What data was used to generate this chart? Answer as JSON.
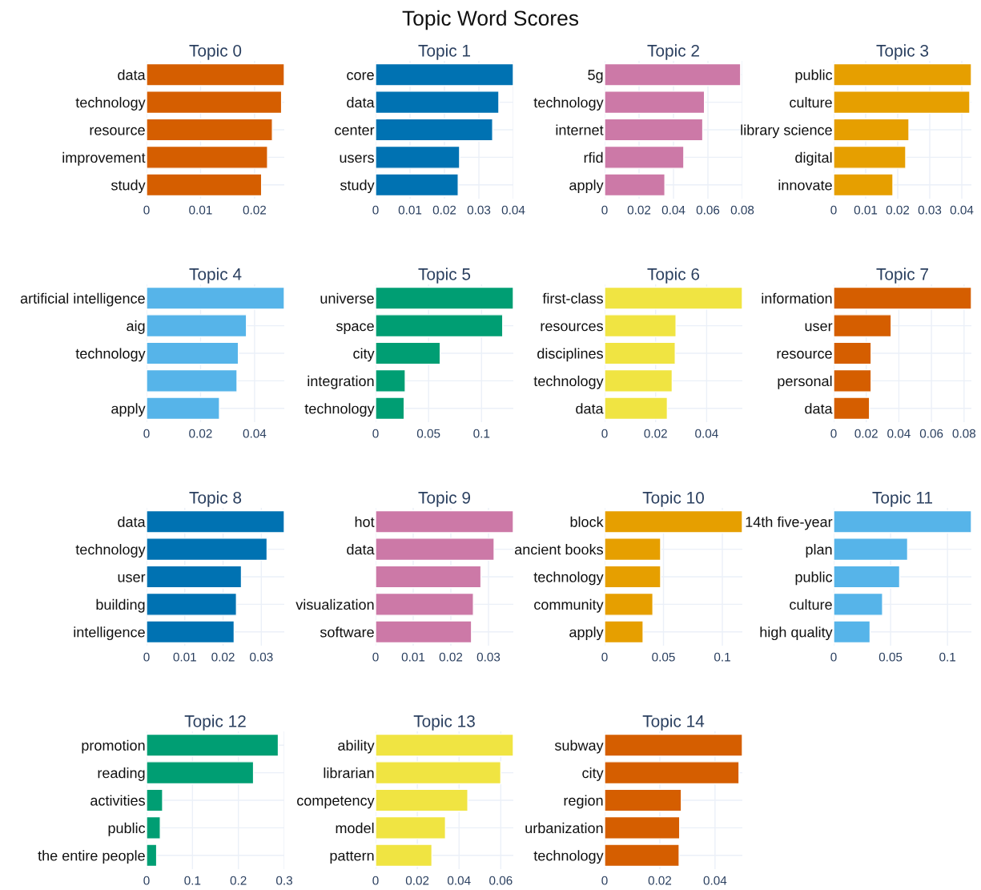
{
  "chart_data": [
    {
      "type": "bar",
      "orientation": "horizontal",
      "title": "Topic 0",
      "annotations": [
        "Topic Word Scores"
      ],
      "categories": [
        "data",
        "technology",
        "resource",
        "improvement",
        "study"
      ],
      "values": [
        0.0255,
        0.025,
        0.0233,
        0.0224,
        0.0213
      ],
      "color": "#d55e00",
      "xlim": [
        0,
        0.0255
      ],
      "xticks": [
        0,
        0.01,
        0.02
      ],
      "grid": true
    },
    {
      "type": "bar",
      "orientation": "horizontal",
      "title": "Topic 1",
      "categories": [
        "core",
        "data",
        "center",
        "users",
        "study"
      ],
      "values": [
        0.04,
        0.0358,
        0.034,
        0.0244,
        0.024
      ],
      "color": "#0072b2",
      "xlim": [
        0,
        0.04
      ],
      "xticks": [
        0,
        0.01,
        0.02,
        0.03,
        0.04
      ],
      "grid": true
    },
    {
      "type": "bar",
      "orientation": "horizontal",
      "title": "Topic 2",
      "categories": [
        "5g",
        "technology",
        "internet",
        "rfid",
        "apply"
      ],
      "values": [
        0.079,
        0.058,
        0.057,
        0.046,
        0.035
      ],
      "color": "#cc79a7",
      "xlim": [
        0,
        0.08
      ],
      "xticks": [
        0,
        0.02,
        0.04,
        0.06,
        0.08
      ],
      "grid": true
    },
    {
      "type": "bar",
      "orientation": "horizontal",
      "title": "Topic 3",
      "categories": [
        "public",
        "culture",
        "library science",
        "digital",
        "innovate"
      ],
      "values": [
        0.043,
        0.0425,
        0.0235,
        0.0225,
        0.0185
      ],
      "color": "#e69f00",
      "xlim": [
        0,
        0.043
      ],
      "xticks": [
        0,
        0.01,
        0.02,
        0.03,
        0.04
      ],
      "grid": true
    },
    {
      "type": "bar",
      "orientation": "horizontal",
      "title": "Topic 4",
      "categories": [
        "artificial intelligence",
        "aig",
        "technology",
        null,
        "apply"
      ],
      "values": [
        0.051,
        0.037,
        0.034,
        0.0335,
        0.027
      ],
      "color": "#56b4e9",
      "xlim": [
        0,
        0.051
      ],
      "xticks": [
        0,
        0.02,
        0.04
      ],
      "grid": true
    },
    {
      "type": "bar",
      "orientation": "horizontal",
      "title": "Topic 5",
      "categories": [
        "universe",
        "space",
        "city",
        "integration",
        "technology"
      ],
      "values": [
        0.13,
        0.12,
        0.061,
        0.028,
        0.027
      ],
      "color": "#009e73",
      "xlim": [
        0,
        0.13
      ],
      "xticks": [
        0,
        0.05,
        0.1
      ],
      "grid": true
    },
    {
      "type": "bar",
      "orientation": "horizontal",
      "title": "Topic 6",
      "categories": [
        "first-class",
        "resources",
        "disciplines",
        "technology",
        "data"
      ],
      "values": [
        0.054,
        0.028,
        0.0277,
        0.0265,
        0.0246
      ],
      "color": "#f0e442",
      "xlim": [
        0,
        0.054
      ],
      "xticks": [
        0,
        0.02,
        0.04
      ],
      "grid": true
    },
    {
      "type": "bar",
      "orientation": "horizontal",
      "title": "Topic 7",
      "categories": [
        "information",
        "user",
        "resource",
        "personal",
        "data"
      ],
      "values": [
        0.0845,
        0.0353,
        0.023,
        0.023,
        0.022
      ],
      "color": "#d55e00",
      "xlim": [
        0,
        0.0845
      ],
      "xticks": [
        0,
        0.02,
        0.04,
        0.06,
        0.08
      ],
      "grid": true
    },
    {
      "type": "bar",
      "orientation": "horizontal",
      "title": "Topic 8",
      "categories": [
        "data",
        "technology",
        "user",
        "building",
        "intelligence"
      ],
      "values": [
        0.036,
        0.0315,
        0.0248,
        0.0235,
        0.0229
      ],
      "color": "#0072b2",
      "xlim": [
        0,
        0.036
      ],
      "xticks": [
        0,
        0.01,
        0.02,
        0.03
      ],
      "grid": true
    },
    {
      "type": "bar",
      "orientation": "horizontal",
      "title": "Topic 9",
      "categories": [
        "hot",
        "data",
        null,
        "visualization",
        "software"
      ],
      "values": [
        0.0366,
        0.0315,
        0.028,
        0.026,
        0.0255
      ],
      "color": "#cc79a7",
      "xlim": [
        0,
        0.0366
      ],
      "xticks": [
        0,
        0.01,
        0.02,
        0.03
      ],
      "grid": true
    },
    {
      "type": "bar",
      "orientation": "horizontal",
      "title": "Topic 10",
      "categories": [
        "block",
        "ancient books",
        "technology",
        "community",
        "apply"
      ],
      "values": [
        0.117,
        0.0476,
        0.0476,
        0.041,
        0.0327
      ],
      "color": "#e69f00",
      "xlim": [
        0,
        0.117
      ],
      "xticks": [
        0,
        0.05,
        0.1
      ],
      "grid": true
    },
    {
      "type": "bar",
      "orientation": "horizontal",
      "title": "Topic 11",
      "categories": [
        "14th five-year",
        "plan",
        "public",
        "culture",
        "high quality"
      ],
      "values": [
        0.121,
        0.065,
        0.058,
        0.043,
        0.032
      ],
      "color": "#56b4e9",
      "xlim": [
        0,
        0.121
      ],
      "xticks": [
        0,
        0.05,
        0.1
      ],
      "grid": true
    },
    {
      "type": "bar",
      "orientation": "horizontal",
      "title": "Topic 12",
      "categories": [
        "promotion",
        "reading",
        "activities",
        "public",
        "the entire people"
      ],
      "values": [
        0.287,
        0.233,
        0.035,
        0.03,
        0.022
      ],
      "color": "#009e73",
      "xlim": [
        0,
        0.3
      ],
      "xticks": [
        0,
        0.1,
        0.2,
        0.3
      ],
      "grid": true
    },
    {
      "type": "bar",
      "orientation": "horizontal",
      "title": "Topic 13",
      "categories": [
        "ability",
        "librarian",
        "competency",
        "model",
        "pattern"
      ],
      "values": [
        0.066,
        0.06,
        0.0442,
        0.0335,
        0.027
      ],
      "color": "#f0e442",
      "xlim": [
        0,
        0.066
      ],
      "xticks": [
        0,
        0.02,
        0.04,
        0.06
      ],
      "grid": true
    },
    {
      "type": "bar",
      "orientation": "horizontal",
      "title": "Topic 14",
      "categories": [
        "subway",
        "city",
        "region",
        "urbanization",
        "technology"
      ],
      "values": [
        0.0499,
        0.0487,
        0.0278,
        0.0272,
        0.027
      ],
      "color": "#d55e00",
      "xlim": [
        0,
        0.0499
      ],
      "xticks": [
        0,
        0.02,
        0.04
      ],
      "grid": true
    }
  ]
}
